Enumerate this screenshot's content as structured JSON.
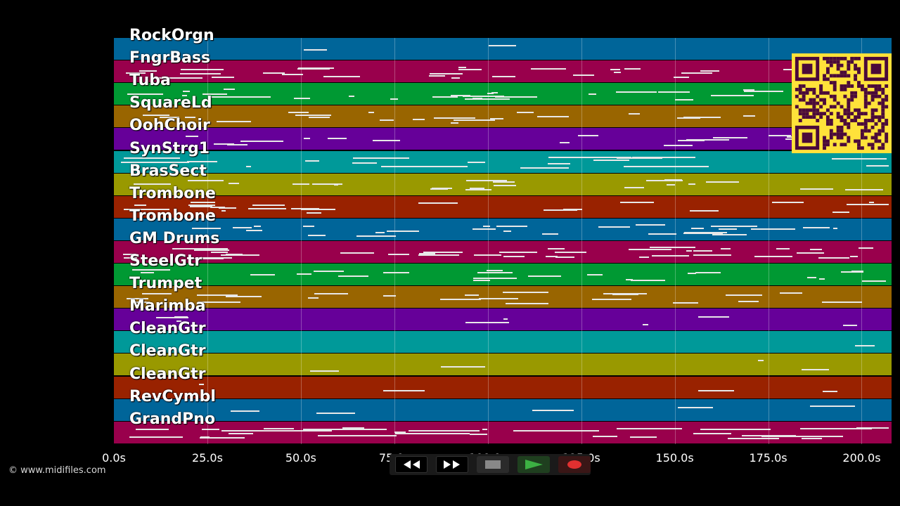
{
  "tracks": [
    {
      "name": "RockOrgn",
      "color": "#006599"
    },
    {
      "name": "FngrBass",
      "color": "#99004c"
    },
    {
      "name": "Tuba",
      "color": "#009933"
    },
    {
      "name": "SquareLd",
      "color": "#996500"
    },
    {
      "name": "OohChoir",
      "color": "#660099"
    },
    {
      "name": "SynStrg1",
      "color": "#009999"
    },
    {
      "name": "BrasSect",
      "color": "#999900"
    },
    {
      "name": "Trombone",
      "color": "#992200"
    },
    {
      "name": "Trombone",
      "color": "#006599"
    },
    {
      "name": "GM Drums",
      "color": "#99004c"
    },
    {
      "name": "SteelGtr",
      "color": "#009933"
    },
    {
      "name": "Trumpet",
      "color": "#996500"
    },
    {
      "name": "Marimba",
      "color": "#660099"
    },
    {
      "name": "CleanGtr",
      "color": "#009999"
    },
    {
      "name": "CleanGtr",
      "color": "#999900"
    },
    {
      "name": "CleanGtr",
      "color": "#992200"
    },
    {
      "name": "RevCymbl",
      "color": "#006599"
    },
    {
      "name": "GrandPno",
      "color": "#99004c"
    }
  ],
  "time_axis": {
    "ticks": [
      "0.0s",
      "25.0s",
      "50.0s",
      "75.0s",
      "100.0s",
      "125.0s",
      "150.0s",
      "175.0s",
      "200.0s"
    ],
    "tick_seconds": [
      0,
      25,
      50,
      75,
      100,
      125,
      150,
      175,
      200
    ],
    "max_seconds": 208
  },
  "copyright": "© www.midifiles.com",
  "transport": {
    "rewind": {
      "icon": "rewind-icon"
    },
    "fast_forward": {
      "icon": "fast-forward-icon"
    },
    "stop": {
      "icon": "stop-icon",
      "color": "#888888"
    },
    "play": {
      "icon": "play-icon",
      "color": "#3cb043"
    },
    "record": {
      "icon": "record-icon",
      "color": "#e03030"
    }
  },
  "qr_code": {
    "icon": "qr-code-icon",
    "fg": "#4a0a3a",
    "bg": "#ffe23a"
  }
}
